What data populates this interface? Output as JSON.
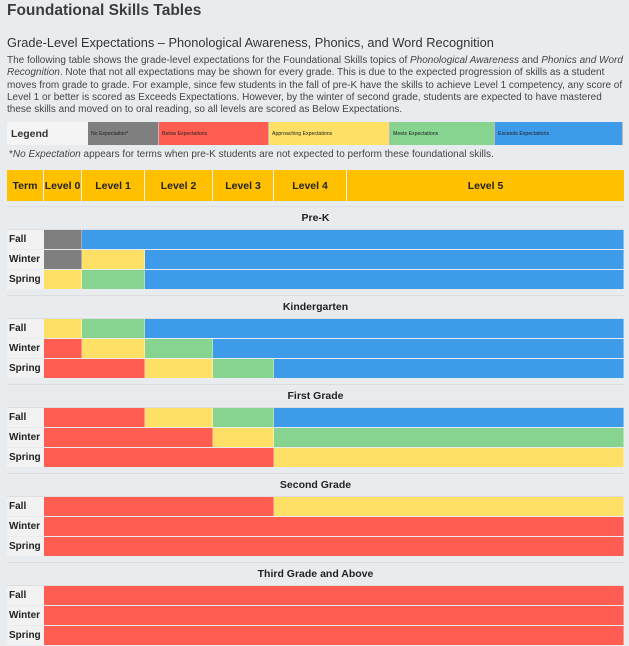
{
  "title": "Foundational Skills Tables",
  "subtitle": "Grade-Level Expectations – Phonological Awareness, Phonics, and Word Recognition",
  "intro": {
    "part1": "The following table shows the grade-level expectations for the Foundational Skills topics of ",
    "topic1": "Phonological Awareness",
    "part2": " and ",
    "topic2": "Phonics and Word Recognition",
    "part3": ". Note that not all expectations may be shown for every grade. This is due to the expected progression of skills as a student moves from grade to grade. For example, since few students in the fall of pre-K have the skills to achieve Level 1 competency, any score of Level 1 or better is scored as Exceeds Expectations. However, by the winter of second grade, students are expected to have mastered these skills and moved on to oral reading, so all levels are scored as Below Expectations."
  },
  "legend": {
    "label": "Legend",
    "items": [
      {
        "key": "none",
        "label": "No Expectation*",
        "color": "#7f7f7f"
      },
      {
        "key": "below",
        "label": "Below Expectations",
        "color": "#ff5d52"
      },
      {
        "key": "approaching",
        "label": "Approaching Expectations",
        "color": "#ffe066"
      },
      {
        "key": "meets",
        "label": "Meets Expectations",
        "color": "#86d48f"
      },
      {
        "key": "exceeds",
        "label": "Exceeds Expectations",
        "color": "#3d9be9"
      }
    ]
  },
  "note": {
    "emph": "No Expectation",
    "rest": " appears for terms when pre-K students are not expected to perform these foundational skills."
  },
  "columns": [
    "Term",
    "Level 0",
    "Level 1",
    "Level 2",
    "Level 3",
    "Level 4",
    "Level 5"
  ],
  "sections": [
    {
      "name": "Pre-K",
      "rows": [
        {
          "term": "Fall",
          "levels": [
            "none",
            "exceeds",
            "exceeds",
            "exceeds",
            "exceeds",
            "exceeds"
          ]
        },
        {
          "term": "Winter",
          "levels": [
            "none",
            "approaching",
            "exceeds",
            "exceeds",
            "exceeds",
            "exceeds"
          ]
        },
        {
          "term": "Spring",
          "levels": [
            "approaching",
            "meets",
            "exceeds",
            "exceeds",
            "exceeds",
            "exceeds"
          ]
        }
      ]
    },
    {
      "name": "Kindergarten",
      "rows": [
        {
          "term": "Fall",
          "levels": [
            "approaching",
            "meets",
            "exceeds",
            "exceeds",
            "exceeds",
            "exceeds"
          ]
        },
        {
          "term": "Winter",
          "levels": [
            "below",
            "approaching",
            "meets",
            "exceeds",
            "exceeds",
            "exceeds"
          ]
        },
        {
          "term": "Spring",
          "levels": [
            "below",
            "below",
            "approaching",
            "meets",
            "exceeds",
            "exceeds"
          ]
        }
      ]
    },
    {
      "name": "First Grade",
      "rows": [
        {
          "term": "Fall",
          "levels": [
            "below",
            "below",
            "approaching",
            "meets",
            "exceeds",
            "exceeds"
          ]
        },
        {
          "term": "Winter",
          "levels": [
            "below",
            "below",
            "below",
            "approaching",
            "meets",
            "meets"
          ]
        },
        {
          "term": "Spring",
          "levels": [
            "below",
            "below",
            "below",
            "below",
            "approaching",
            "approaching"
          ]
        }
      ]
    },
    {
      "name": "Second Grade",
      "rows": [
        {
          "term": "Fall",
          "levels": [
            "below",
            "below",
            "below",
            "below",
            "approaching",
            "approaching"
          ]
        },
        {
          "term": "Winter",
          "levels": [
            "below",
            "below",
            "below",
            "below",
            "below",
            "below"
          ]
        },
        {
          "term": "Spring",
          "levels": [
            "below",
            "below",
            "below",
            "below",
            "below",
            "below"
          ]
        }
      ]
    },
    {
      "name": "Third Grade and Above",
      "rows": [
        {
          "term": "Fall",
          "levels": [
            "below",
            "below",
            "below",
            "below",
            "below",
            "below"
          ]
        },
        {
          "term": "Winter",
          "levels": [
            "below",
            "below",
            "below",
            "below",
            "below",
            "below"
          ]
        },
        {
          "term": "Spring",
          "levels": [
            "below",
            "below",
            "below",
            "below",
            "below",
            "below"
          ]
        }
      ]
    }
  ]
}
